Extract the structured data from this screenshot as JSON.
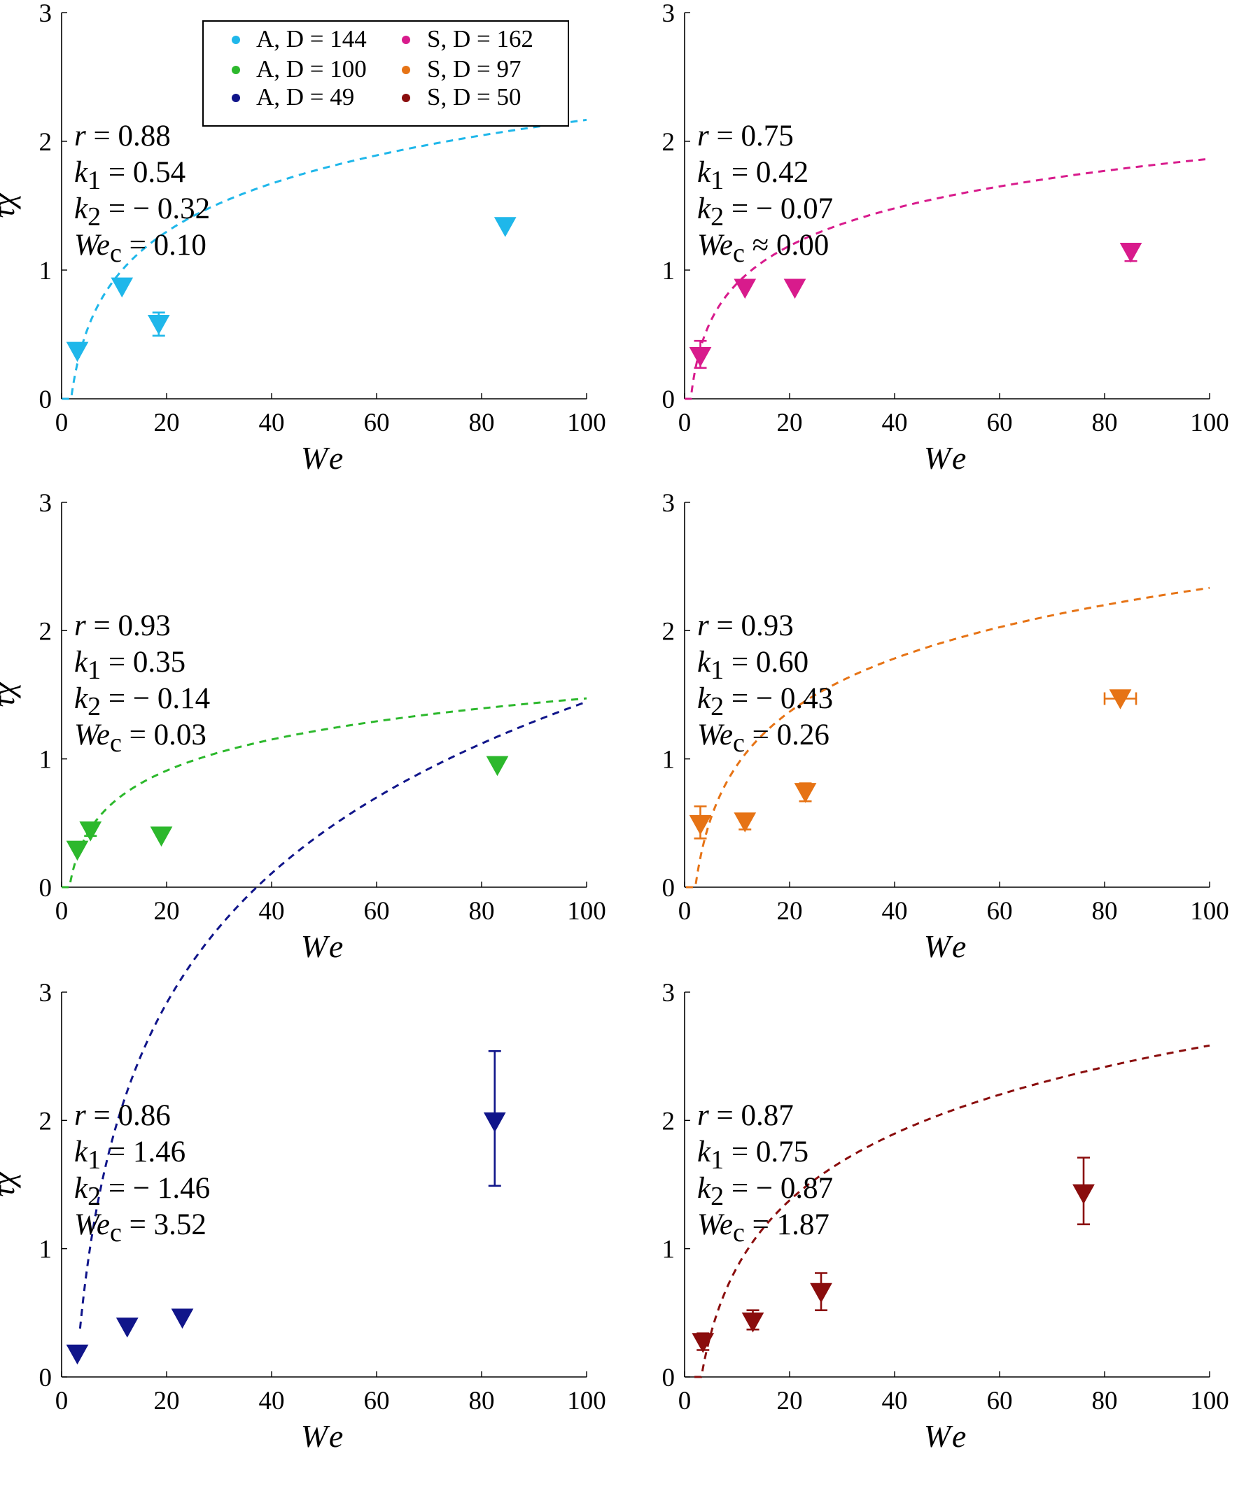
{
  "chart_data": [
    {
      "type": "scatter",
      "xlabel": "We",
      "ylabel": "τχ",
      "xlim": [
        0,
        100
      ],
      "ylim": [
        0,
        3
      ],
      "x_ticks": [
        0,
        20,
        40,
        60,
        80,
        100
      ],
      "y_ticks": [
        0,
        1,
        2,
        3
      ],
      "grid": false,
      "color": "#1fb7ea",
      "series_ref": "A, D = 144",
      "points": [
        {
          "x": 3,
          "y": 0.37
        },
        {
          "x": 11.5,
          "y": 0.87
        },
        {
          "x": 18.5,
          "y": 0.58,
          "err_low": 0.49,
          "err_high": 0.67
        },
        {
          "x": 84.5,
          "y": 1.34
        }
      ],
      "fit": {
        "k1": 0.54,
        "k2": -0.32,
        "We_c": 0.1
      },
      "annotation": {
        "r": "= 0.88",
        "k1": "= 0.54",
        "k2": "= − 0.32",
        "We_c": "= 0.10"
      },
      "show_legend": true
    },
    {
      "type": "scatter",
      "xlabel": "We",
      "ylabel": "",
      "xlim": [
        0,
        100
      ],
      "ylim": [
        0,
        3
      ],
      "x_ticks": [
        0,
        20,
        40,
        60,
        80,
        100
      ],
      "y_ticks": [
        0,
        1,
        2,
        3
      ],
      "grid": false,
      "color": "#d81b8c",
      "series_ref": "S, D = 162",
      "points": [
        {
          "x": 3,
          "y": 0.33,
          "err_low": 0.24,
          "err_high": 0.45
        },
        {
          "x": 11.5,
          "y": 0.86
        },
        {
          "x": 21,
          "y": 0.86
        },
        {
          "x": 85,
          "y": 1.14,
          "err_low": 1.07,
          "err_high": 1.19
        }
      ],
      "fit": {
        "k1": 0.42,
        "k2": -0.07,
        "We_c": 0.0
      },
      "annotation": {
        "r": "= 0.75",
        "k1": "= 0.42",
        "k2": "= − 0.07",
        "We_c": "≈ 0.00"
      },
      "show_legend": false
    },
    {
      "type": "scatter",
      "xlabel": "We",
      "ylabel": "τχ",
      "xlim": [
        0,
        100
      ],
      "ylim": [
        0,
        3
      ],
      "x_ticks": [
        0,
        20,
        40,
        60,
        80,
        100
      ],
      "y_ticks": [
        0,
        1,
        2,
        3
      ],
      "grid": false,
      "color": "#2cb82c",
      "series_ref": "A, D = 100",
      "points": [
        {
          "x": 3,
          "y": 0.29
        },
        {
          "x": 5.5,
          "y": 0.44,
          "err_low": 0.4,
          "err_high": 0.49
        },
        {
          "x": 19,
          "y": 0.4
        },
        {
          "x": 83,
          "y": 0.95
        }
      ],
      "fit": {
        "k1": 0.35,
        "k2": -0.14,
        "We_c": 0.03
      },
      "annotation": {
        "r": "= 0.93",
        "k1": "= 0.35",
        "k2": "= − 0.14",
        "We_c": "= 0.03"
      },
      "show_legend": false
    },
    {
      "type": "scatter",
      "xlabel": "We",
      "ylabel": "",
      "xlim": [
        0,
        100
      ],
      "ylim": [
        0,
        3
      ],
      "x_ticks": [
        0,
        20,
        40,
        60,
        80,
        100
      ],
      "y_ticks": [
        0,
        1,
        2,
        3
      ],
      "grid": false,
      "color": "#e67315",
      "series_ref": "S, D = 97",
      "points": [
        {
          "x": 3,
          "y": 0.49,
          "err_low": 0.38,
          "err_high": 0.63
        },
        {
          "x": 11.5,
          "y": 0.51,
          "err_low": 0.45,
          "err_high": 0.56
        },
        {
          "x": 23,
          "y": 0.74,
          "err_low": 0.67,
          "err_high": 0.81
        },
        {
          "x": 83,
          "y": 1.47,
          "xerr_low": 80,
          "xerr_high": 86
        }
      ],
      "fit": {
        "k1": 0.6,
        "k2": -0.43,
        "We_c": 0.26
      },
      "annotation": {
        "r": "= 0.93",
        "k1": "= 0.60",
        "k2": "= − 0.43",
        "We_c": "= 0.26"
      },
      "show_legend": false
    },
    {
      "type": "scatter",
      "xlabel": "We",
      "ylabel": "τχ",
      "xlim": [
        0,
        100
      ],
      "ylim": [
        0,
        3
      ],
      "x_ticks": [
        0,
        20,
        40,
        60,
        80,
        100
      ],
      "y_ticks": [
        0,
        1,
        2,
        3
      ],
      "grid": false,
      "color": "#10158a",
      "series_ref": "A, D = 49",
      "points": [
        {
          "x": 3,
          "y": 0.18
        },
        {
          "x": 12.5,
          "y": 0.39
        },
        {
          "x": 23,
          "y": 0.46
        },
        {
          "x": 82.5,
          "y": 1.99,
          "err_low": 1.49,
          "err_high": 2.54
        }
      ],
      "fit": {
        "k1": 1.46,
        "k2": -1.46,
        "We_c": 3.52
      },
      "annotation": {
        "r": "= 0.86",
        "k1": "= 1.46",
        "k2": "= − 1.46",
        "We_c": "= 3.52"
      },
      "show_legend": false
    },
    {
      "type": "scatter",
      "xlabel": "We",
      "ylabel": "",
      "xlim": [
        0,
        100
      ],
      "ylim": [
        0,
        3
      ],
      "x_ticks": [
        0,
        20,
        40,
        60,
        80,
        100
      ],
      "y_ticks": [
        0,
        1,
        2,
        3
      ],
      "grid": false,
      "color": "#8a0d0d",
      "series_ref": "S, D = 50",
      "points": [
        {
          "x": 3.5,
          "y": 0.27,
          "err_low": 0.21,
          "err_high": 0.34
        },
        {
          "x": 13,
          "y": 0.43,
          "err_low": 0.37,
          "err_high": 0.52
        },
        {
          "x": 26,
          "y": 0.66,
          "err_low": 0.52,
          "err_high": 0.81
        },
        {
          "x": 76,
          "y": 1.43,
          "err_low": 1.19,
          "err_high": 1.71
        }
      ],
      "fit": {
        "k1": 0.75,
        "k2": -0.87,
        "We_c": 1.87
      },
      "annotation": {
        "r": "= 0.87",
        "k1": "= 0.75",
        "k2": "= − 0.87",
        "We_c": "= 1.87"
      },
      "show_legend": false
    }
  ],
  "legend": {
    "entries": [
      {
        "label": "A, D = 144",
        "color": "#1fb7ea"
      },
      {
        "label": "S, D = 162",
        "color": "#d81b8c"
      },
      {
        "label": "A, D = 100",
        "color": "#2cb82c"
      },
      {
        "label": "S, D = 97",
        "color": "#e67315"
      },
      {
        "label": "A, D = 49",
        "color": "#10158a"
      },
      {
        "label": "S, D = 50",
        "color": "#8a0d0d"
      }
    ],
    "placement": "top, inside first panel"
  }
}
